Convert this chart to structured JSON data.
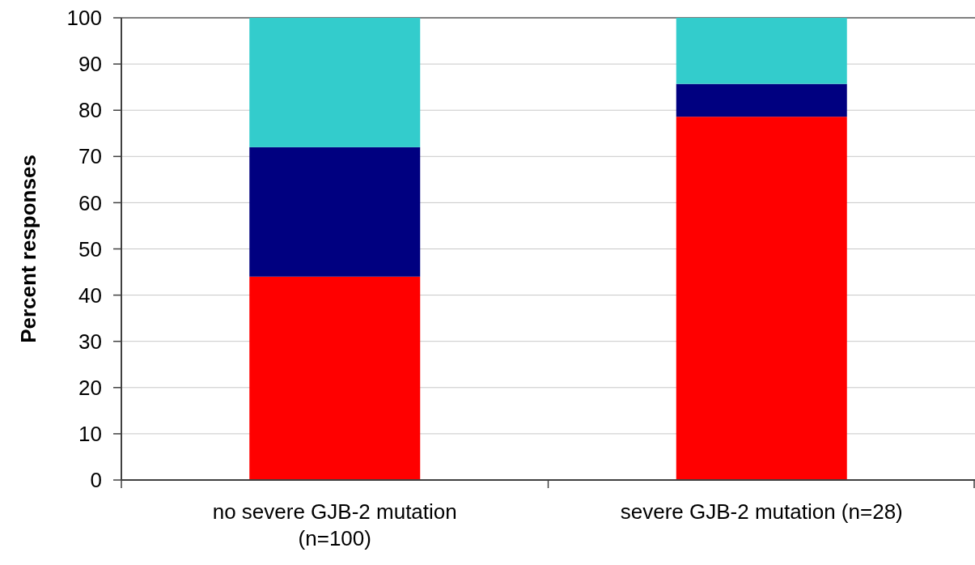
{
  "chart_data": {
    "type": "bar",
    "ylabel": "Percent responses",
    "categories": [
      "no severe GJB-2 mutation (n=100)",
      "severe GJB-2 mutation (n=28)"
    ],
    "stacked": true,
    "series": [
      {
        "color": "#ff0000",
        "values": [
          44,
          78.6
        ]
      },
      {
        "color": "#000080",
        "values": [
          28,
          7.1
        ]
      },
      {
        "color": "#33cccc",
        "values": [
          28,
          14.3
        ]
      }
    ],
    "ylim": [
      0,
      100
    ],
    "yticks": [
      0,
      10,
      20,
      30,
      40,
      50,
      60,
      70,
      80,
      90,
      100
    ],
    "grid": "y"
  }
}
